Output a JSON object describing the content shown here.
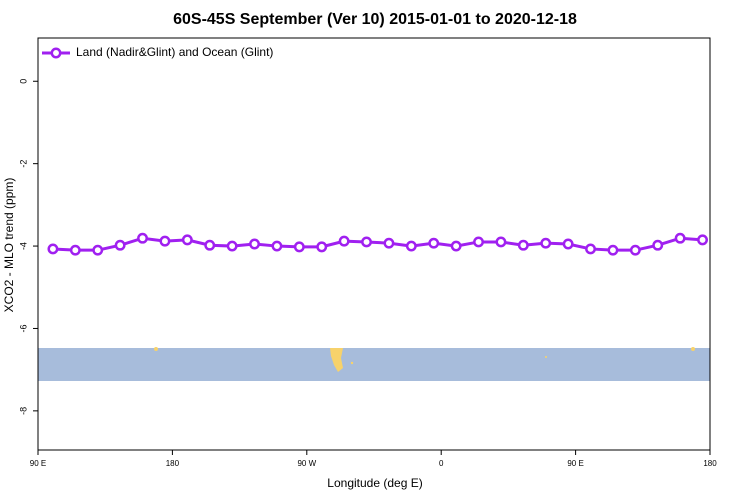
{
  "chart_data": {
    "type": "line",
    "title": "60S-45S September (Ver 10)   2015-01-01 to 2020-12-18",
    "x_label": "Longitude (deg E)",
    "y_label": "XCO2 - MLO trend (ppm)",
    "x": [
      100,
      115,
      130,
      145,
      160,
      175,
      190,
      205,
      220,
      235,
      250,
      265,
      280,
      295,
      310,
      325,
      340,
      355,
      370,
      385,
      400,
      415,
      430,
      445,
      460,
      475,
      490,
      505,
      520,
      535
    ],
    "series": [
      {
        "name": "Land (Nadir&Glint) and Ocean (Glint)",
        "color": "#a020f0",
        "values": [
          -4.07,
          -4.1,
          -4.1,
          -3.98,
          -3.81,
          -3.88,
          -3.85,
          -3.98,
          -4.0,
          -3.95,
          -4.0,
          -4.02,
          -4.02,
          -3.88,
          -3.9,
          -3.93,
          -4.0,
          -3.93,
          -4.0,
          -3.9,
          -3.9,
          -3.98,
          -3.93,
          -3.95,
          -4.07,
          -4.1,
          -4.1,
          -3.98,
          -3.81,
          -3.85
        ]
      }
    ],
    "xlim": [
      90,
      540
    ],
    "xticks": [
      {
        "value": 90,
        "label": "90 E"
      },
      {
        "value": 180,
        "label": "180"
      },
      {
        "value": 270,
        "label": "90 W"
      },
      {
        "value": 360,
        "label": "0"
      },
      {
        "value": 450,
        "label": "90 E"
      },
      {
        "value": 540,
        "label": "180"
      }
    ],
    "ylim": [
      -8.95,
      1.05
    ],
    "yticks": [
      0,
      -2,
      -4,
      -6,
      -8
    ],
    "legend": "top-left"
  }
}
